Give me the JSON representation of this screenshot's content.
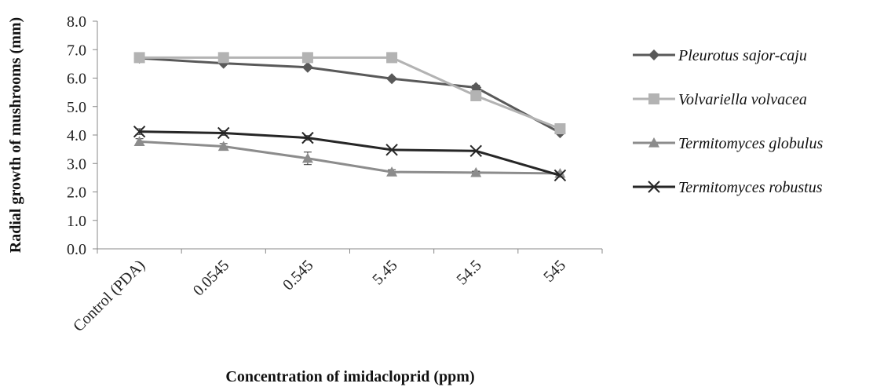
{
  "chart_data": {
    "type": "line",
    "title": "",
    "xlabel": "Concentration of imidacloprid (ppm)",
    "ylabel": "Radial growth of mushrooms (mm)",
    "categories": [
      "Control (PDA)",
      "0.0545",
      "0.545",
      "5.45",
      "54.5",
      "545"
    ],
    "ylim": [
      0,
      8
    ],
    "yticks": [
      "0.0",
      "1.0",
      "2.0",
      "3.0",
      "4.0",
      "5.0",
      "6.0",
      "7.0",
      "8.0"
    ],
    "grid": false,
    "legend_position": "right",
    "series": [
      {
        "name": "Pleurotus sajor-caju",
        "values": [
          6.7,
          6.52,
          6.38,
          5.98,
          5.67,
          4.08
        ],
        "error": [
          0,
          0,
          0,
          0,
          0.08,
          0
        ],
        "color": "#595959",
        "marker": "diamond"
      },
      {
        "name": "Volvariella volvacea",
        "values": [
          6.72,
          6.72,
          6.72,
          6.72,
          5.38,
          4.22
        ],
        "error": [
          0,
          0,
          0,
          0,
          0,
          0
        ],
        "color": "#b3b3b3",
        "marker": "square"
      },
      {
        "name": "Termitomyces globulus",
        "values": [
          3.77,
          3.6,
          3.18,
          2.7,
          2.68,
          2.65
        ],
        "error": [
          0.1,
          0.1,
          0.22,
          0.08,
          0.05,
          0.05
        ],
        "color": "#8c8c8c",
        "marker": "triangle"
      },
      {
        "name": "Termitomyces robustus",
        "values": [
          4.12,
          4.07,
          3.9,
          3.48,
          3.44,
          2.58
        ],
        "error": [
          0.1,
          0.08,
          0.08,
          0,
          0,
          0
        ],
        "color": "#262626",
        "marker": "x"
      }
    ]
  }
}
